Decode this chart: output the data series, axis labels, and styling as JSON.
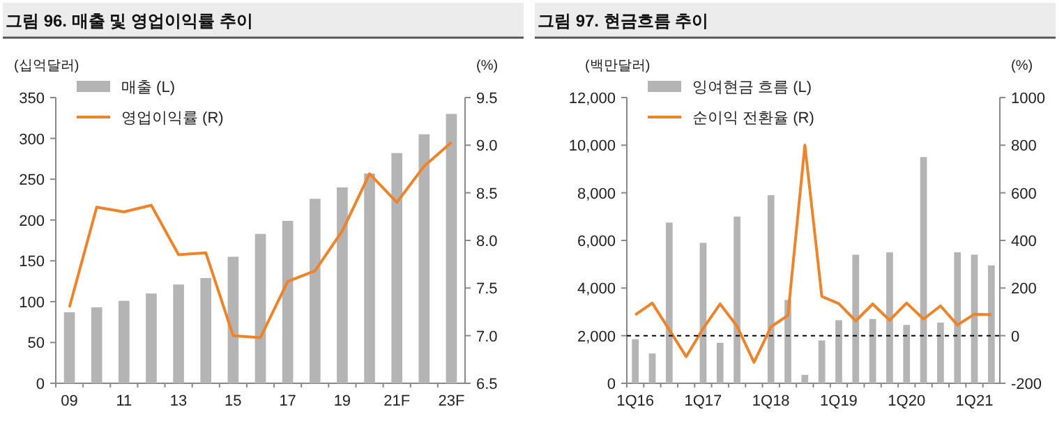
{
  "chart_data": [
    {
      "type": "bar",
      "title": "그림 96. 매출 및 영업이익률 추이",
      "ylabel": "(십억달러)",
      "y2label": "(%)",
      "categories": [
        "09",
        null,
        "11",
        null,
        "13",
        null,
        "15",
        null,
        "17",
        null,
        "19",
        null,
        "21F",
        null,
        "23F"
      ],
      "ylim": [
        0,
        350
      ],
      "yticks": [
        0,
        50,
        100,
        150,
        200,
        250,
        300,
        350
      ],
      "y2lim": [
        6.5,
        9.5
      ],
      "y2ticks": [
        {
          "value": 6.5,
          "label": "6.5"
        },
        {
          "value": 7,
          "label": "7.0"
        },
        {
          "value": 7.5,
          "label": "7.5"
        },
        {
          "value": 8,
          "label": "8.0"
        },
        {
          "value": 8.5,
          "label": "8.5"
        },
        {
          "value": 9,
          "label": "9.0"
        },
        {
          "value": 9.5,
          "label": "9.5"
        }
      ],
      "legend": "top left",
      "series": [
        {
          "name": "매출 (L)",
          "color": "#b4b4b4",
          "values": [
            87,
            93,
            101,
            110,
            121,
            129,
            155,
            183,
            199,
            226,
            240,
            257,
            282,
            305,
            330
          ]
        },
        {
          "name": "영업이익률 (R)",
          "type": "line",
          "axis": "y2",
          "color": "#f08327",
          "values": [
            7.3,
            8.35,
            8.3,
            8.37,
            7.85,
            7.87,
            7.0,
            6.98,
            7.57,
            7.68,
            8.1,
            8.7,
            8.4,
            8.78,
            9.03
          ]
        }
      ]
    },
    {
      "type": "bar",
      "title": "그림 97. 현금흐름 추이",
      "ylabel": "(백만달러)",
      "y2label": "(%)",
      "categories": [
        "1Q16",
        null,
        null,
        null,
        "1Q17",
        null,
        null,
        null,
        "1Q18",
        null,
        null,
        null,
        "1Q19",
        null,
        null,
        null,
        "1Q20",
        null,
        null,
        null,
        "1Q21",
        null
      ],
      "ylim": [
        0,
        12000
      ],
      "yticks": [
        {
          "value": 0,
          "label": "0"
        },
        {
          "value": 2000,
          "label": "2,000"
        },
        {
          "value": 4000,
          "label": "4,000"
        },
        {
          "value": 6000,
          "label": "6,000"
        },
        {
          "value": 8000,
          "label": "8,000"
        },
        {
          "value": 10000,
          "label": "10,000"
        },
        {
          "value": 12000,
          "label": "12,000"
        }
      ],
      "y2lim": [
        -200,
        1000
      ],
      "y2ticks": [
        -200,
        0,
        200,
        400,
        600,
        800,
        1000
      ],
      "legend": "top left",
      "ref_lines": [
        {
          "axis": "y2",
          "value": 0,
          "color": "#000000",
          "line_style": "dashed"
        }
      ],
      "series": [
        {
          "name": "잉여현금 흐름 (L)",
          "color": "#b4b4b4",
          "values": [
            1850,
            1250,
            6750,
            null,
            5900,
            1700,
            7000,
            null,
            7900,
            3500,
            350,
            1800,
            2650,
            5400,
            2700,
            5500,
            2450,
            9500,
            2550,
            5500,
            5400,
            4950
          ]
        },
        {
          "name": "순이익 전환율 (R)",
          "type": "line",
          "axis": "y2",
          "color": "#f08327",
          "values": [
            88,
            137,
            25,
            -88,
            30,
            133,
            40,
            -112,
            37,
            85,
            800,
            165,
            135,
            62,
            133,
            65,
            137,
            70,
            125,
            45,
            90,
            88
          ]
        }
      ]
    }
  ]
}
